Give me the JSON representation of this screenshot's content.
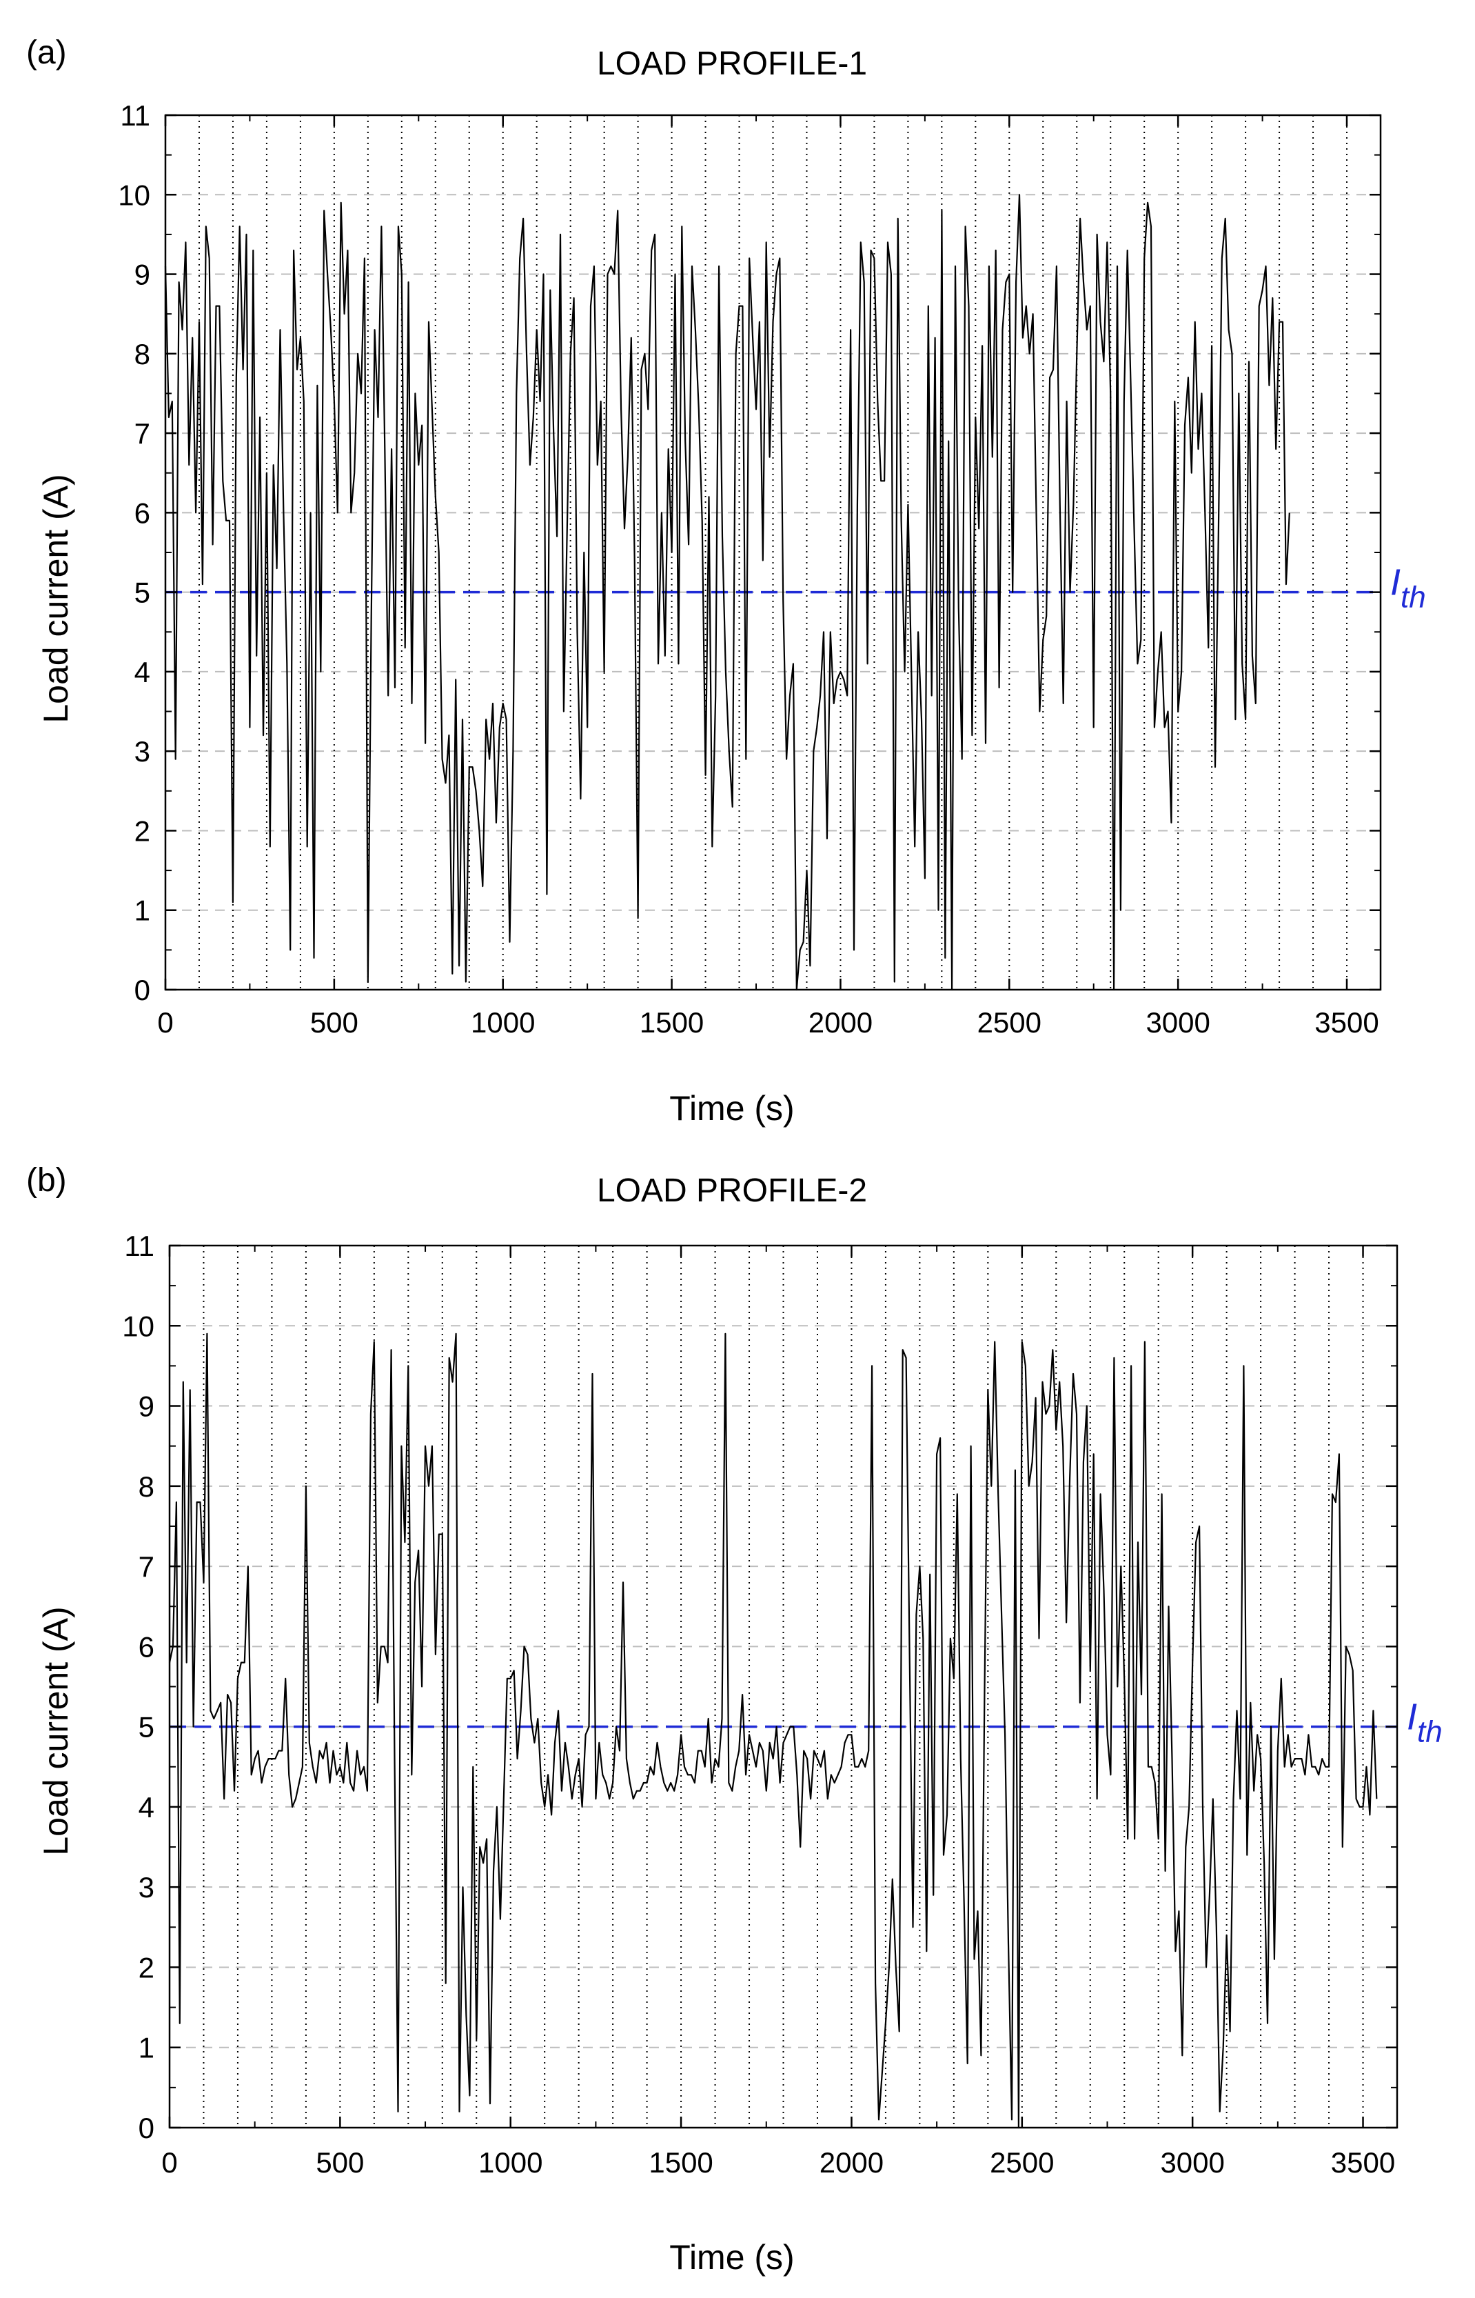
{
  "threshold_label": {
    "main": "I",
    "sub": "th"
  },
  "colors": {
    "series": "#000000",
    "threshold": "#1f2bd6",
    "grid": "#bdbdbd",
    "vgrid": "#000000"
  },
  "chart_data": [
    {
      "type": "line",
      "panel_label": "(a)",
      "title": "LOAD PROFILE-1",
      "xlabel": "Time (s)",
      "ylabel": "Load current (A)",
      "xlim": [
        0,
        3600
      ],
      "ylim": [
        0,
        11
      ],
      "xticks": [
        0,
        500,
        1000,
        1500,
        2000,
        2500,
        3000,
        3500
      ],
      "yticks": [
        0,
        1,
        2,
        3,
        4,
        5,
        6,
        7,
        8,
        9,
        10,
        11
      ],
      "threshold": 5,
      "step": 10,
      "values": [
        9.1,
        7.2,
        7.4,
        2.9,
        8.9,
        8.3,
        9.4,
        6.6,
        8.2,
        6.0,
        8.4,
        5.1,
        9.6,
        9.2,
        5.6,
        8.6,
        8.6,
        6.4,
        5.9,
        5.9,
        1.1,
        7.7,
        9.6,
        7.8,
        9.5,
        3.3,
        9.3,
        4.2,
        7.2,
        3.2,
        6.5,
        1.8,
        6.6,
        5.3,
        8.3,
        6.0,
        4.1,
        0.5,
        9.3,
        7.8,
        8.2,
        7.4,
        1.8,
        6.0,
        0.4,
        7.6,
        4.0,
        9.8,
        9.0,
        8.3,
        7.4,
        6.0,
        9.9,
        8.5,
        9.3,
        6.0,
        6.5,
        8.0,
        7.5,
        9.2,
        0.1,
        4.7,
        8.3,
        7.2,
        9.6,
        6.8,
        3.7,
        6.8,
        3.8,
        9.6,
        9.0,
        4.3,
        8.9,
        3.6,
        7.5,
        6.6,
        7.1,
        3.1,
        8.4,
        7.3,
        6.2,
        5.5,
        2.9,
        2.6,
        3.2,
        0.2,
        3.9,
        0.3,
        3.4,
        0.1,
        2.8,
        2.8,
        2.5,
        2.0,
        1.3,
        3.4,
        2.9,
        3.6,
        2.1,
        3.3,
        3.6,
        3.4,
        0.6,
        3.0,
        7.5,
        9.2,
        9.7,
        8.0,
        6.6,
        7.2,
        8.3,
        7.4,
        9.0,
        1.2,
        8.8,
        7.0,
        5.7,
        9.5,
        3.5,
        5.8,
        8.0,
        8.7,
        4.5,
        2.4,
        5.5,
        3.3,
        8.6,
        9.1,
        6.6,
        7.4,
        4.0,
        9.0,
        9.1,
        9.0,
        9.8,
        7.3,
        5.8,
        6.7,
        8.2,
        5.4,
        0.9,
        7.8,
        8.0,
        7.3,
        9.3,
        9.5,
        4.1,
        6.0,
        4.2,
        6.8,
        5.5,
        9.0,
        4.1,
        9.6,
        6.9,
        5.6,
        9.1,
        8.3,
        7.3,
        5.9,
        2.7,
        6.2,
        1.8,
        3.7,
        9.1,
        5.7,
        4.0,
        3.0,
        2.3,
        8.0,
        8.6,
        8.6,
        2.9,
        9.2,
        8.2,
        7.3,
        8.4,
        5.4,
        9.4,
        6.7,
        8.4,
        9.0,
        9.2,
        4.9,
        2.9,
        3.7,
        4.1,
        0.0,
        0.5,
        0.6,
        1.5,
        0.3,
        3.0,
        3.3,
        3.7,
        4.5,
        1.9,
        4.5,
        3.6,
        3.9,
        4.0,
        3.9,
        3.7,
        8.3,
        0.5,
        6.1,
        9.4,
        8.9,
        4.1,
        9.3,
        9.2,
        7.4,
        6.4,
        6.4,
        9.4,
        9.0,
        0.1,
        9.7,
        5.9,
        4.0,
        6.1,
        4.0,
        1.8,
        4.5,
        3.4,
        1.4,
        8.6,
        3.7,
        8.2,
        1.0,
        9.8,
        0.4,
        6.9,
        0.0,
        9.1,
        4.8,
        2.9,
        9.6,
        8.6,
        3.2,
        7.2,
        5.8,
        8.1,
        3.1,
        9.1,
        6.7,
        9.3,
        3.8,
        8.3,
        8.9,
        9.0,
        5.0,
        8.9,
        10.0,
        8.2,
        8.6,
        8.0,
        8.5,
        6.0,
        3.5,
        4.4,
        4.7,
        7.7,
        7.8,
        9.1,
        6.1,
        3.6,
        7.4,
        5.0,
        6.1,
        8.0,
        9.7,
        8.9,
        8.3,
        8.6,
        3.3,
        9.5,
        8.4,
        7.9,
        9.4,
        7.5,
        0.0,
        9.1,
        1.0,
        7.4,
        9.3,
        7.6,
        5.8,
        4.1,
        4.4,
        9.2,
        9.9,
        9.6,
        3.3,
        4.0,
        4.5,
        3.3,
        3.5,
        2.1,
        7.4,
        3.5,
        4.0,
        7.1,
        7.7,
        6.5,
        8.4,
        6.8,
        7.5,
        6.0,
        4.3,
        8.1,
        2.8,
        5.8,
        9.2,
        9.7,
        8.3,
        8.0,
        3.4,
        7.5,
        4.1,
        3.4,
        7.9,
        4.2,
        3.6,
        8.6,
        8.8,
        9.1,
        7.6,
        8.7,
        6.8,
        8.4,
        8.4,
        5.1,
        6.0
      ]
    },
    {
      "type": "line",
      "panel_label": "(b)",
      "title": "LOAD PROFILE-2",
      "xlabel": "Time (s)",
      "ylabel": "Load current (A)",
      "xlim": [
        0,
        3600
      ],
      "ylim": [
        0,
        11
      ],
      "xticks": [
        0,
        500,
        1000,
        1500,
        2000,
        2500,
        3000,
        3500
      ],
      "yticks": [
        0,
        1,
        2,
        3,
        4,
        5,
        6,
        7,
        8,
        9,
        10,
        11
      ],
      "threshold": 5,
      "step": 10,
      "values": [
        5.8,
        6.0,
        7.8,
        1.3,
        9.3,
        5.8,
        9.2,
        5.0,
        7.8,
        7.8,
        6.8,
        9.9,
        5.2,
        5.1,
        5.2,
        5.3,
        4.1,
        5.4,
        5.3,
        4.2,
        5.6,
        5.8,
        5.8,
        7.0,
        4.4,
        4.6,
        4.7,
        4.3,
        4.5,
        4.6,
        4.6,
        4.6,
        4.7,
        4.7,
        5.6,
        4.4,
        4.0,
        4.1,
        4.3,
        4.5,
        8.0,
        4.8,
        4.5,
        4.3,
        4.7,
        4.6,
        4.8,
        4.3,
        4.7,
        4.4,
        4.5,
        4.3,
        4.8,
        4.3,
        4.2,
        4.7,
        4.4,
        4.5,
        4.2,
        8.9,
        9.8,
        5.3,
        6.0,
        6.0,
        5.8,
        9.7,
        4.6,
        0.2,
        8.5,
        7.3,
        9.5,
        4.4,
        6.8,
        7.2,
        5.5,
        8.5,
        8.0,
        8.5,
        5.9,
        7.4,
        7.4,
        1.8,
        9.6,
        9.3,
        9.9,
        0.2,
        3.0,
        1.4,
        0.4,
        4.5,
        1.1,
        3.5,
        3.3,
        3.6,
        0.3,
        3.2,
        4.0,
        2.6,
        4.1,
        5.6,
        5.6,
        5.7,
        4.6,
        5.2,
        6.0,
        5.9,
        5.1,
        4.8,
        5.1,
        4.3,
        4.0,
        4.4,
        3.9,
        4.8,
        5.2,
        4.2,
        4.8,
        4.5,
        4.1,
        4.4,
        4.6,
        4.0,
        4.9,
        5.0,
        9.4,
        4.1,
        4.8,
        4.4,
        4.3,
        4.1,
        4.3,
        5.0,
        4.7,
        6.8,
        4.6,
        4.3,
        4.1,
        4.2,
        4.2,
        4.3,
        4.3,
        4.5,
        4.4,
        4.8,
        4.5,
        4.3,
        4.2,
        4.3,
        4.2,
        4.4,
        4.9,
        4.5,
        4.4,
        4.4,
        4.3,
        4.7,
        4.7,
        4.5,
        5.1,
        4.3,
        4.6,
        4.5,
        5.1,
        9.9,
        4.3,
        4.2,
        4.5,
        4.7,
        5.4,
        4.4,
        4.9,
        4.7,
        4.5,
        4.8,
        4.7,
        4.2,
        4.8,
        4.6,
        5.0,
        4.3,
        4.8,
        4.9,
        5.0,
        5.0,
        4.4,
        3.5,
        4.7,
        4.6,
        4.1,
        4.7,
        4.6,
        4.5,
        4.7,
        4.1,
        4.4,
        4.3,
        4.4,
        4.5,
        4.8,
        4.9,
        4.9,
        4.5,
        4.5,
        4.6,
        4.5,
        4.7,
        9.5,
        1.8,
        0.1,
        0.7,
        1.3,
        2.0,
        3.1,
        2.0,
        1.2,
        9.7,
        9.6,
        6.0,
        2.5,
        6.4,
        7.0,
        6.1,
        2.2,
        6.9,
        2.9,
        8.4,
        8.6,
        3.4,
        3.9,
        6.1,
        5.6,
        7.9,
        4.6,
        2.8,
        0.8,
        8.5,
        2.1,
        2.7,
        0.9,
        5.4,
        9.2,
        8.0,
        9.8,
        7.9,
        6.4,
        4.9,
        2.3,
        0.1,
        8.2,
        0.0,
        9.8,
        9.5,
        8.0,
        8.3,
        9.1,
        6.1,
        9.3,
        8.9,
        9.0,
        9.7,
        8.7,
        9.3,
        8.5,
        6.3,
        8.1,
        9.4,
        8.9,
        5.3,
        8.3,
        9.0,
        5.7,
        8.4,
        4.1,
        7.9,
        6.7,
        4.9,
        4.4,
        9.6,
        5.5,
        7.0,
        5.6,
        3.6,
        9.5,
        3.6,
        7.3,
        5.4,
        9.8,
        4.5,
        4.5,
        4.3,
        3.6,
        7.9,
        3.2,
        6.5,
        4.6,
        2.2,
        2.7,
        0.9,
        3.5,
        4.0,
        5.8,
        7.3,
        7.5,
        4.0,
        2.0,
        2.9,
        4.1,
        2.5,
        0.2,
        1.0,
        2.4,
        1.2,
        4.1,
        5.2,
        4.1,
        9.5,
        3.4,
        5.3,
        4.2,
        4.9,
        4.6,
        3.3,
        1.3,
        5.0,
        2.1,
        4.7,
        5.6,
        4.5,
        4.9,
        4.5,
        4.6,
        4.6,
        4.6,
        4.4,
        4.9,
        4.5,
        4.5,
        4.4,
        4.6,
        4.5,
        4.5,
        7.9,
        7.8,
        8.4,
        3.5,
        6.0,
        5.9,
        5.7,
        4.1,
        4.0,
        4.0,
        4.5,
        3.9,
        5.2,
        4.1
      ]
    }
  ]
}
